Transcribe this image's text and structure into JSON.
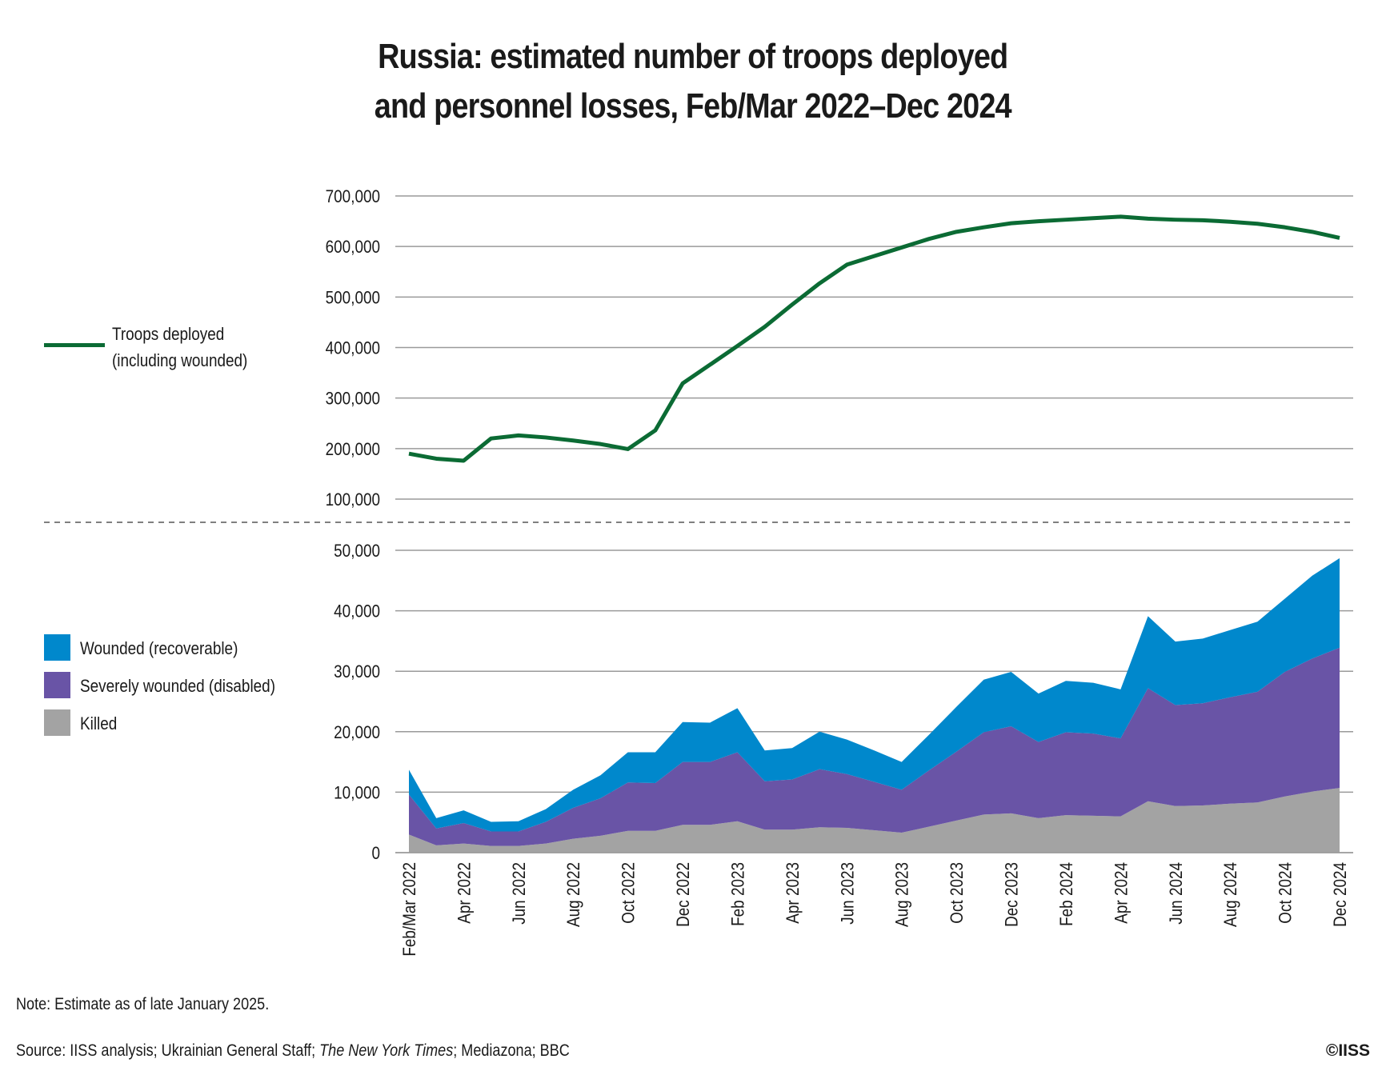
{
  "title_line1": "Russia: estimated number of troops deployed",
  "title_line2": "and personnel losses, Feb/Mar 2022–Dec 2024",
  "note": "Note: Estimate as of late January 2025.",
  "source_prefix": "Source: IISS analysis; Ukrainian General Staff; ",
  "source_italic": "The New York Times",
  "source_suffix": "; Mediazona; BBC",
  "copyright": "©IISS",
  "colors": {
    "troops": "#0b6b34",
    "wounded": "#0088cc",
    "severely": "#6954a6",
    "killed": "#a3a3a3",
    "grid": "#9a9a9a"
  },
  "chart_data": [
    {
      "type": "line",
      "legend_placement": "left",
      "grid": true,
      "ylim": [
        100000,
        700000
      ],
      "yticks": [
        "100,000",
        "200,000",
        "300,000",
        "400,000",
        "500,000",
        "600,000",
        "700,000"
      ],
      "x_tick_labels": [
        "Feb/Mar 2022",
        "Apr 2022",
        "Jun 2022",
        "Aug 2022",
        "Oct 2022",
        "Dec 2022",
        "Feb 2023",
        "Apr 2023",
        "Jun 2023",
        "Aug 2023",
        "Oct 2023",
        "Dec 2023",
        "Feb 2024",
        "Apr 2024",
        "Jun 2024",
        "Aug 2024",
        "Oct 2024",
        "Dec 2024"
      ],
      "series": [
        {
          "name_line1": "Troops deployed",
          "name_line2": "(including wounded)",
          "values": [
            190000,
            180000,
            176000,
            220000,
            226000,
            222000,
            216000,
            209000,
            199000,
            236000,
            329000,
            366000,
            403000,
            441000,
            485000,
            527000,
            564000,
            581000,
            598000,
            615000,
            629000,
            638000,
            646000,
            650000,
            653000,
            656000,
            659000,
            655000,
            653000,
            652000,
            649000,
            645000,
            638000,
            629000,
            617000
          ]
        }
      ]
    },
    {
      "type": "area",
      "stacked": true,
      "legend_placement": "left",
      "grid": true,
      "ylim": [
        0,
        50000
      ],
      "yticks": [
        "0",
        "10,000",
        "20,000",
        "30,000",
        "40,000",
        "50,000"
      ],
      "x_tick_labels": [
        "Feb/Mar 2022",
        "Apr 2022",
        "Jun 2022",
        "Aug 2022",
        "Oct 2022",
        "Dec 2022",
        "Feb 2023",
        "Apr 2023",
        "Jun 2023",
        "Aug 2023",
        "Oct 2023",
        "Dec 2023",
        "Feb 2024",
        "Apr 2024",
        "Jun 2024",
        "Aug 2024",
        "Oct 2024",
        "Dec 2024"
      ],
      "series": [
        {
          "name": "Killed",
          "values": [
            3000,
            1200,
            1500,
            1100,
            1100,
            1500,
            2300,
            2800,
            3600,
            3600,
            4600,
            4600,
            5200,
            3800,
            3800,
            4200,
            4100,
            3700,
            3300,
            4300,
            5300,
            6300,
            6500,
            5700,
            6200,
            6100,
            6000,
            8500,
            7700,
            7800,
            8100,
            8300,
            9300,
            10100,
            10700
          ]
        },
        {
          "name": "Severely wounded (disabled)",
          "values": [
            6600,
            2800,
            3400,
            2400,
            2400,
            3600,
            5100,
            6200,
            8000,
            7900,
            10400,
            10400,
            11400,
            8000,
            8300,
            9600,
            8900,
            8000,
            7100,
            9300,
            11400,
            13600,
            14400,
            12600,
            13700,
            13600,
            12900,
            18700,
            16700,
            16900,
            17600,
            18300,
            20600,
            22000,
            23200
          ]
        },
        {
          "name": "Wounded (recoverable)",
          "values": [
            4100,
            1700,
            2100,
            1600,
            1700,
            2100,
            3000,
            3800,
            5000,
            5100,
            6600,
            6500,
            7300,
            5100,
            5200,
            6200,
            5700,
            5200,
            4600,
            5900,
            7400,
            8700,
            9000,
            8000,
            8500,
            8400,
            8100,
            11900,
            10500,
            10700,
            11100,
            11600,
            12100,
            13700,
            14800
          ]
        }
      ]
    }
  ]
}
